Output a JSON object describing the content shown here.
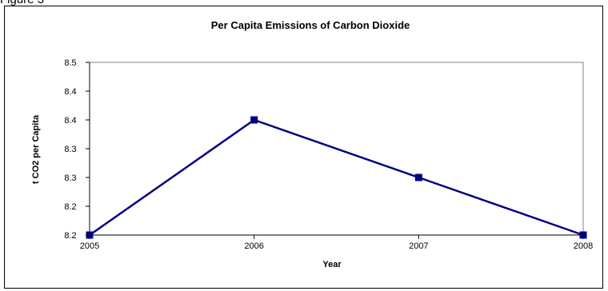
{
  "figure_caption": "Figure 3",
  "chart_data": {
    "type": "line",
    "title": "Per Capita Emissions of Carbon Dioxide",
    "xlabel": "Year",
    "ylabel": "t CO2 per Capita",
    "categories": [
      "2005",
      "2006",
      "2007",
      "2008"
    ],
    "series": [
      {
        "values": [
          8.2,
          8.4,
          8.3,
          8.2
        ]
      }
    ],
    "y_ticks": [
      "8.5",
      "8.4",
      "8.4",
      "8.3",
      "8.3",
      "8.2",
      "8.2"
    ],
    "ylim": [
      8.2,
      8.5
    ],
    "grid": false,
    "legend": "none",
    "series_color": "#00007f",
    "marker": "square"
  }
}
